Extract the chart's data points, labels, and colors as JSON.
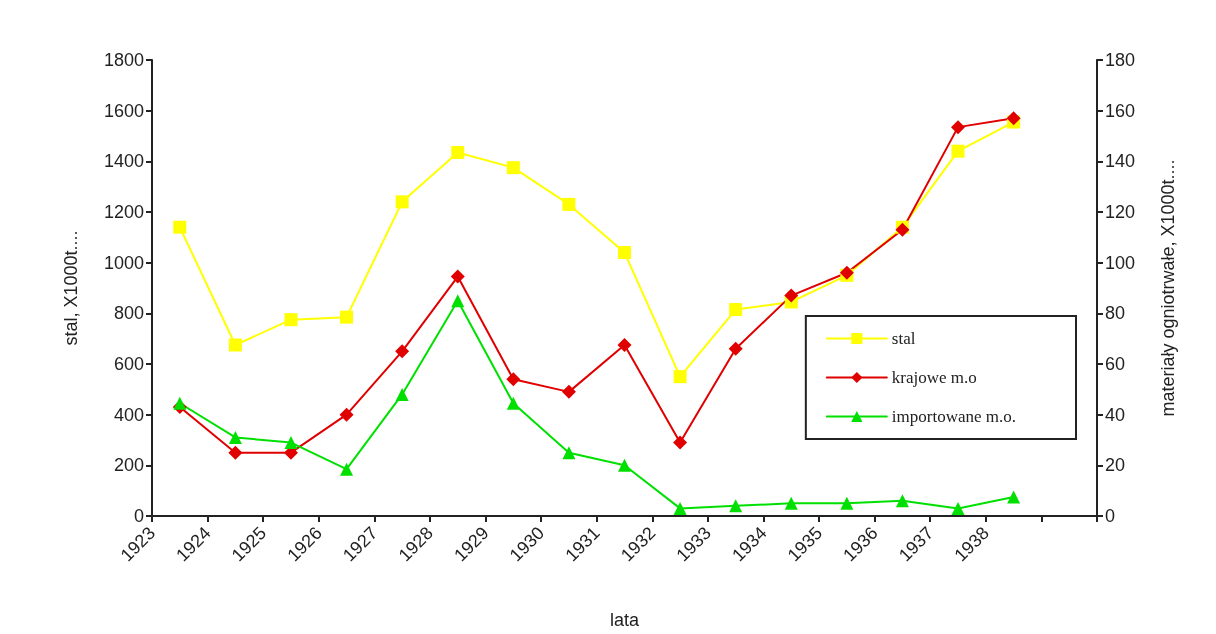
{
  "chart_data": {
    "type": "line",
    "xlabel": "lata",
    "ylabel": "stal, X1000t....",
    "y2label": "materiały ogniotrwałe, X1000t....",
    "x": [
      1923.5,
      1924.5,
      1925.5,
      1926.5,
      1927.5,
      1928.5,
      1929.5,
      1930.5,
      1931.5,
      1932.5,
      1933.5,
      1934.5,
      1935.5,
      1936.5,
      1937.5,
      1938.5
    ],
    "xlim": [
      1923,
      1940
    ],
    "xticks": [
      1923,
      1924,
      1925,
      1926,
      1927,
      1928,
      1929,
      1930,
      1931,
      1932,
      1933,
      1934,
      1935,
      1936,
      1937,
      1938,
      {
        "value": 1939,
        "label": null
      },
      {
        "value": 1940,
        "label": null
      }
    ],
    "ylim": [
      0,
      1800
    ],
    "yticks": [
      0,
      200,
      400,
      600,
      800,
      1000,
      1200,
      1400,
      1600,
      1800
    ],
    "y2lim": [
      0,
      180
    ],
    "y2ticks": [
      0,
      20,
      40,
      60,
      80,
      100,
      120,
      140,
      160,
      180
    ],
    "grid": false,
    "legend": "right",
    "line_style": "solid",
    "series": [
      {
        "name": "stal",
        "color": "#ffff00",
        "marker": "square",
        "values": [
          1140,
          675,
          775,
          785,
          1240,
          1435,
          1375,
          1230,
          1040,
          550,
          815,
          845,
          950,
          1140,
          1440,
          1555
        ]
      },
      {
        "name": "krajowe m.o",
        "color": "#e00000",
        "marker": "diamond",
        "axis": "y2",
        "values": [
          43,
          25,
          25,
          40,
          65,
          94.5,
          54,
          49,
          67.5,
          29,
          66,
          87,
          96,
          113,
          153.5,
          157
        ]
      },
      {
        "name": "importowane m.o.",
        "color": "#00e000",
        "marker": "triangle",
        "axis": "y2",
        "values": [
          44.5,
          31,
          29,
          18.5,
          48,
          85,
          44.5,
          25,
          20,
          3,
          4,
          5,
          5,
          6,
          3,
          7.5
        ]
      }
    ]
  }
}
